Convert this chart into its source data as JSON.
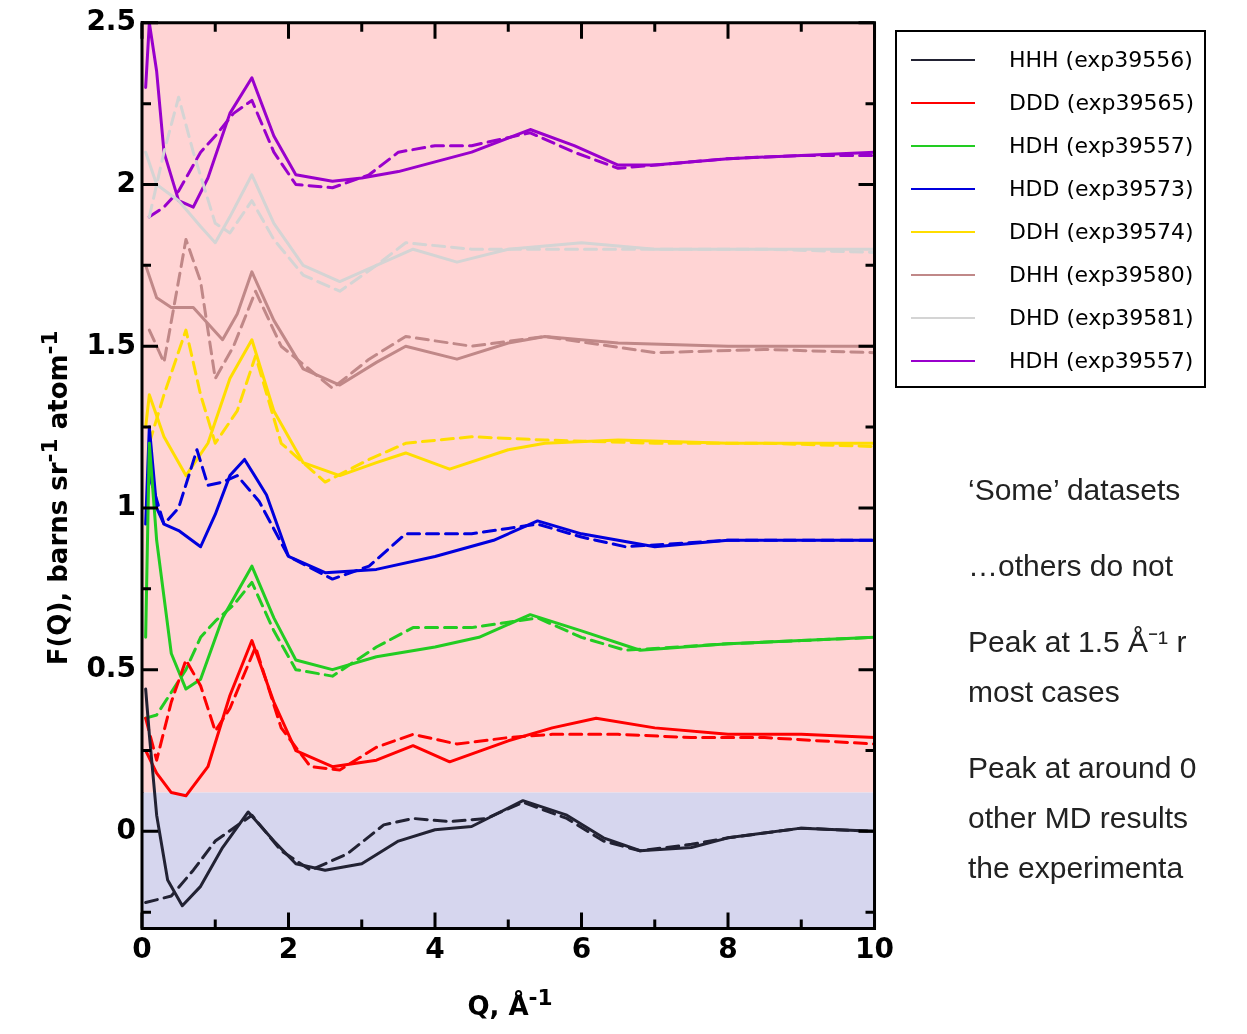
{
  "chart_data": {
    "type": "line",
    "xlabel": "Q, Å$^{-1}$",
    "ylabel": "F(Q), barns sr$^{-1}$ atom$^{-1}$",
    "xlim": [
      0,
      10
    ],
    "ylim": [
      -0.3,
      2.5
    ],
    "xticks": [
      0,
      {
        "value": 1,
        "label": null
      },
      2,
      {
        "value": 3,
        "label": null
      },
      4,
      {
        "value": 5,
        "label": null
      },
      6,
      {
        "value": 7,
        "label": null
      },
      8,
      {
        "value": 9,
        "label": null
      },
      10
    ],
    "yticks": [
      {
        "value": -0.25,
        "label": null
      },
      0,
      {
        "value": 0.25,
        "label": null
      },
      0.5,
      {
        "value": 0.75,
        "label": null
      },
      1,
      {
        "value": 1.25,
        "label": null
      },
      1.5,
      {
        "value": 1.75,
        "label": null
      },
      2,
      {
        "value": 2.25,
        "label": null
      },
      2.5
    ],
    "grid": false,
    "legend": "top right",
    "marker": "none",
    "bands": [
      {
        "axis": "y",
        "from": 0.12,
        "to": 2.5,
        "color": "#ffd4d4"
      },
      {
        "axis": "y",
        "from": -0.3,
        "to": 0.12,
        "color": "#d6d6ee"
      }
    ],
    "annotations": [
      "‘Some’ datasets",
      "…others do not",
      "Peak at 1.5 Å⁻¹ r\nmost cases",
      "Peak at around 0\nother MD results\nthe experimenta"
    ],
    "series": [
      {
        "name": "HHH (exp39556)",
        "color": "#222233",
        "line_style": "solid",
        "x": [
          0.05,
          0.1,
          0.2,
          0.35,
          0.55,
          0.8,
          1.1,
          1.45,
          1.8,
          2.1,
          2.5,
          3.0,
          3.5,
          4.0,
          4.5,
          5.2,
          5.8,
          6.3,
          6.8,
          7.5,
          8,
          9,
          10
        ],
        "values": [
          0.44,
          0.3,
          0.05,
          -0.15,
          -0.23,
          -0.17,
          -0.05,
          0.06,
          -0.03,
          -0.1,
          -0.12,
          -0.1,
          -0.03,
          0.005,
          0.015,
          0.095,
          0.05,
          -0.02,
          -0.06,
          -0.05,
          -0.02,
          0.01,
          0
        ]
      },
      {
        "color": "#222233",
        "line_style": "dashed",
        "x": [
          0.05,
          0.4,
          0.7,
          1.0,
          1.5,
          1.9,
          2.3,
          2.8,
          3.3,
          3.7,
          4.2,
          4.7,
          5.2,
          5.8,
          6.3,
          6.8,
          7.5,
          8,
          9,
          10
        ],
        "values": [
          -0.22,
          -0.2,
          -0.12,
          -0.03,
          0.05,
          -0.06,
          -0.12,
          -0.07,
          0.02,
          0.04,
          0.03,
          0.04,
          0.09,
          0.04,
          -0.03,
          -0.06,
          -0.04,
          -0.02,
          0.01,
          0
        ]
      },
      {
        "name": "DDD (exp39565)",
        "color": "#ff0000",
        "line_style": "solid",
        "x": [
          0.05,
          0.2,
          0.4,
          0.6,
          0.9,
          1.2,
          1.5,
          1.8,
          2.1,
          2.6,
          3.2,
          3.7,
          4.2,
          5.0,
          5.6,
          6.2,
          7,
          8,
          9,
          10
        ],
        "values": [
          0.25,
          0.18,
          0.12,
          0.11,
          0.2,
          0.42,
          0.59,
          0.4,
          0.25,
          0.2,
          0.22,
          0.265,
          0.215,
          0.28,
          0.32,
          0.35,
          0.32,
          0.3,
          0.3,
          0.29
        ]
      },
      {
        "color": "#ff0000",
        "line_style": "dashed",
        "x": [
          0.05,
          0.2,
          0.4,
          0.6,
          0.8,
          1.0,
          1.2,
          1.55,
          1.9,
          2.3,
          2.7,
          3.2,
          3.7,
          4.3,
          5.0,
          5.6,
          6.5,
          7.5,
          8.5,
          10
        ],
        "values": [
          0.35,
          0.22,
          0.4,
          0.53,
          0.45,
          0.31,
          0.38,
          0.57,
          0.32,
          0.2,
          0.19,
          0.26,
          0.3,
          0.27,
          0.29,
          0.3,
          0.3,
          0.29,
          0.29,
          0.27
        ]
      },
      {
        "name": "HDH (exp39557)",
        "color": "#22cc22",
        "line_style": "solid",
        "x": [
          0.05,
          0.1,
          0.2,
          0.4,
          0.6,
          0.8,
          1.1,
          1.5,
          1.8,
          2.1,
          2.6,
          3.2,
          4.0,
          4.6,
          5.3,
          6.0,
          6.8,
          8,
          9,
          10
        ],
        "values": [
          0.6,
          1.2,
          0.9,
          0.55,
          0.44,
          0.47,
          0.66,
          0.82,
          0.66,
          0.53,
          0.5,
          0.54,
          0.57,
          0.6,
          0.67,
          0.62,
          0.56,
          0.58,
          0.59,
          0.6
        ]
      },
      {
        "color": "#22cc22",
        "line_style": "dashed",
        "x": [
          0.05,
          0.2,
          0.4,
          0.6,
          0.8,
          1.0,
          1.25,
          1.5,
          1.8,
          2.1,
          2.6,
          3.2,
          3.7,
          4.5,
          5.4,
          6.0,
          6.6,
          8,
          9,
          10
        ],
        "values": [
          0.35,
          0.36,
          0.43,
          0.5,
          0.6,
          0.65,
          0.7,
          0.77,
          0.62,
          0.5,
          0.48,
          0.57,
          0.63,
          0.63,
          0.66,
          0.6,
          0.56,
          0.58,
          0.59,
          0.6
        ]
      },
      {
        "name": "HDD (exp39573)",
        "color": "#0000dd",
        "line_style": "solid",
        "x": [
          0.05,
          0.1,
          0.2,
          0.3,
          0.5,
          0.8,
          1.0,
          1.2,
          1.4,
          1.7,
          2.0,
          2.5,
          3.2,
          4.0,
          4.8,
          5.4,
          6.0,
          7.0,
          8,
          9,
          10
        ],
        "values": [
          0.95,
          1.25,
          1.0,
          0.95,
          0.93,
          0.88,
          0.98,
          1.1,
          1.15,
          1.04,
          0.85,
          0.8,
          0.81,
          0.85,
          0.9,
          0.96,
          0.92,
          0.88,
          0.9,
          0.9,
          0.9
        ]
      },
      {
        "color": "#0000dd",
        "line_style": "dashed",
        "x": [
          0.1,
          0.3,
          0.5,
          0.75,
          0.9,
          1.1,
          1.3,
          1.6,
          2.0,
          2.6,
          3.1,
          3.6,
          4.5,
          5.4,
          6.0,
          6.6,
          8,
          9,
          10
        ],
        "values": [
          1.1,
          0.95,
          1.0,
          1.18,
          1.07,
          1.08,
          1.1,
          1.02,
          0.85,
          0.78,
          0.82,
          0.92,
          0.92,
          0.95,
          0.91,
          0.88,
          0.9,
          0.9,
          0.9
        ]
      },
      {
        "name": "DDH (exp39574)",
        "color": "#ffdd00",
        "line_style": "solid",
        "x": [
          0.05,
          0.1,
          0.3,
          0.6,
          0.9,
          1.2,
          1.5,
          1.8,
          2.2,
          2.7,
          3.2,
          3.6,
          4.2,
          5.0,
          5.5,
          6.5,
          8,
          9,
          10
        ],
        "values": [
          1.25,
          1.35,
          1.22,
          1.1,
          1.2,
          1.4,
          1.52,
          1.3,
          1.14,
          1.1,
          1.14,
          1.17,
          1.12,
          1.18,
          1.2,
          1.21,
          1.2,
          1.2,
          1.2
        ]
      },
      {
        "color": "#ffdd00",
        "line_style": "dashed",
        "x": [
          0.1,
          0.3,
          0.6,
          0.8,
          1.0,
          1.3,
          1.55,
          1.9,
          2.5,
          3.1,
          3.6,
          4.5,
          5.5,
          7,
          8.5,
          10
        ],
        "values": [
          1.2,
          1.35,
          1.55,
          1.35,
          1.2,
          1.3,
          1.47,
          1.2,
          1.08,
          1.15,
          1.2,
          1.22,
          1.21,
          1.2,
          1.2,
          1.19
        ]
      },
      {
        "name": "DHH (exp39580)",
        "color": "#c08888",
        "line_style": "solid",
        "x": [
          0.05,
          0.2,
          0.4,
          0.7,
          1.1,
          1.3,
          1.5,
          1.8,
          2.2,
          2.7,
          3.2,
          3.6,
          4.3,
          5.0,
          5.5,
          6.5,
          8,
          10
        ],
        "values": [
          1.75,
          1.65,
          1.62,
          1.62,
          1.52,
          1.6,
          1.73,
          1.58,
          1.43,
          1.38,
          1.45,
          1.5,
          1.46,
          1.51,
          1.53,
          1.51,
          1.5,
          1.5
        ]
      },
      {
        "color": "#c08888",
        "line_style": "dashed",
        "x": [
          0.1,
          0.3,
          0.6,
          0.8,
          1.0,
          1.25,
          1.55,
          1.9,
          2.6,
          3.1,
          3.6,
          4.5,
          5.5,
          7,
          8.5,
          10
        ],
        "values": [
          1.55,
          1.45,
          1.83,
          1.7,
          1.4,
          1.5,
          1.67,
          1.5,
          1.37,
          1.46,
          1.53,
          1.5,
          1.53,
          1.48,
          1.49,
          1.48
        ]
      },
      {
        "name": "DHD (exp39581)",
        "color": "#d4d4d4",
        "line_style": "solid",
        "x": [
          0.05,
          0.2,
          0.5,
          0.8,
          1.0,
          1.2,
          1.5,
          1.8,
          2.2,
          2.7,
          3.2,
          3.7,
          4.3,
          5.0,
          6.0,
          7,
          8,
          10
        ],
        "values": [
          2.1,
          2.0,
          1.95,
          1.87,
          1.82,
          1.9,
          2.03,
          1.88,
          1.75,
          1.7,
          1.75,
          1.8,
          1.76,
          1.8,
          1.82,
          1.8,
          1.8,
          1.8
        ]
      },
      {
        "color": "#d4d4d4",
        "line_style": "dashed",
        "x": [
          0.1,
          0.3,
          0.5,
          0.7,
          1.0,
          1.2,
          1.5,
          1.8,
          2.2,
          2.7,
          3.2,
          3.6,
          4.5,
          5.5,
          7,
          8.5,
          10
        ],
        "values": [
          1.9,
          2.1,
          2.27,
          2.1,
          1.88,
          1.85,
          1.95,
          1.83,
          1.72,
          1.67,
          1.75,
          1.82,
          1.8,
          1.8,
          1.8,
          1.8,
          1.79
        ]
      },
      {
        "name": "HDH (exp39557)",
        "color": "#9900cc",
        "line_style": "solid",
        "x": [
          0.05,
          0.1,
          0.2,
          0.3,
          0.5,
          0.7,
          0.9,
          1.2,
          1.5,
          1.8,
          2.1,
          2.6,
          3.0,
          3.5,
          4.0,
          4.5,
          5.3,
          5.9,
          6.5,
          7,
          8,
          9,
          10
        ],
        "values": [
          2.3,
          2.5,
          2.35,
          2.1,
          1.95,
          1.93,
          2.02,
          2.22,
          2.33,
          2.15,
          2.03,
          2.01,
          2.02,
          2.04,
          2.07,
          2.1,
          2.17,
          2.12,
          2.06,
          2.06,
          2.08,
          2.09,
          2.1
        ]
      },
      {
        "color": "#9900cc",
        "line_style": "dashed",
        "x": [
          0.1,
          0.3,
          0.5,
          0.8,
          1.0,
          1.25,
          1.5,
          1.8,
          2.1,
          2.6,
          3.1,
          3.5,
          4.0,
          4.5,
          5.3,
          5.9,
          6.5,
          7,
          8,
          9,
          10
        ],
        "values": [
          1.9,
          1.93,
          1.98,
          2.1,
          2.15,
          2.22,
          2.26,
          2.1,
          2.0,
          1.99,
          2.03,
          2.1,
          2.12,
          2.12,
          2.16,
          2.1,
          2.05,
          2.06,
          2.08,
          2.09,
          2.09
        ]
      }
    ]
  }
}
